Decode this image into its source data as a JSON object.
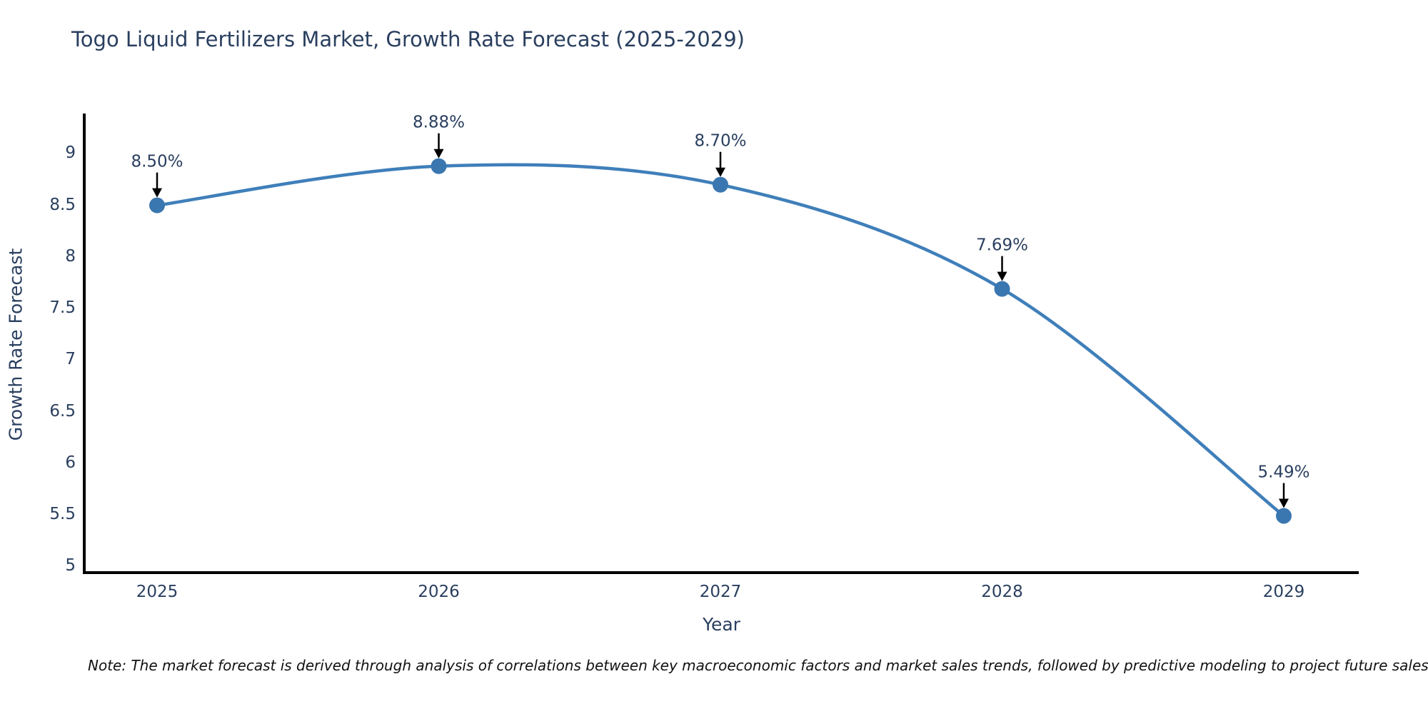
{
  "note": "Note: The market forecast is derived through analysis of correlations between key macroeconomic factors and market sales trends, followed by predictive modeling to project future sales",
  "chart_data": {
    "type": "line",
    "title": "Togo Liquid Fertilizers Market, Growth Rate Forecast (2025-2029)",
    "xlabel": "Year",
    "ylabel": "Growth Rate Forecast",
    "categories": [
      "2025",
      "2026",
      "2027",
      "2028",
      "2029"
    ],
    "values": [
      8.5,
      8.88,
      8.7,
      7.69,
      5.49
    ],
    "point_labels": [
      "8.50%",
      "8.88%",
      "8.70%",
      "7.69%",
      "5.49%"
    ],
    "yticks": [
      5,
      5.5,
      6,
      6.5,
      7,
      7.5,
      8,
      8.5,
      9
    ],
    "ylim": [
      4.94,
      9.39
    ],
    "grid": false,
    "legend": "none",
    "line_shape": "spline",
    "line_color": "#3f7fba",
    "marker_color": "#3a77b0",
    "axis_color": "#000000",
    "annotation_arrow_color": "#000000",
    "text_color": "#2a3f5f"
  }
}
